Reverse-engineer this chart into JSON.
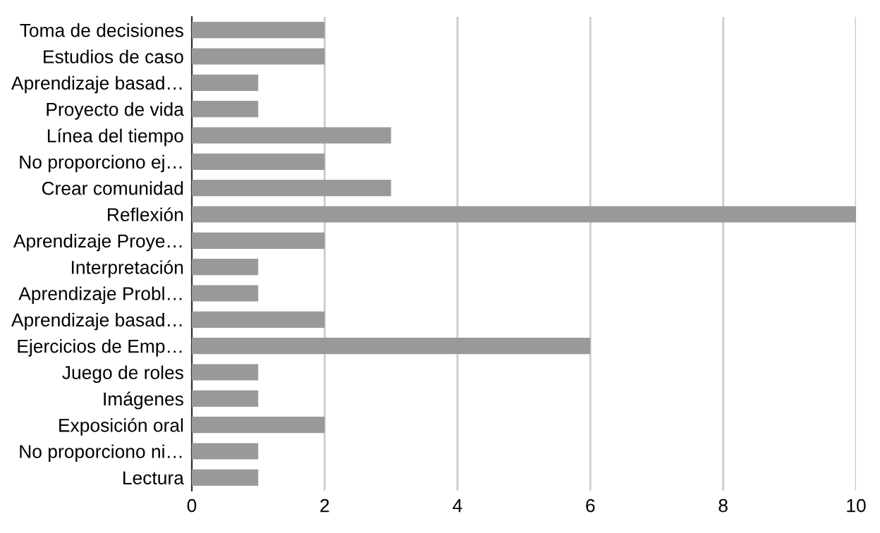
{
  "chart_data": {
    "type": "bar",
    "orientation": "horizontal",
    "categories": [
      "Toma de decisiones",
      "Estudios de caso",
      "Aprendizaje basad…",
      "Proyecto de vida",
      "Línea del tiempo",
      "No proporciono ej…",
      "Crear comunidad",
      "Reflexión",
      "Aprendizaje Proye…",
      "Interpretación",
      "Aprendizaje Probl…",
      "Aprendizaje basad…",
      "Ejercicios de Emp…",
      "Juego de roles",
      "Imágenes",
      "Exposición oral",
      "No proporciono ni…",
      "Lectura"
    ],
    "values": [
      2,
      2,
      1,
      1,
      3,
      2,
      3,
      10,
      2,
      1,
      1,
      2,
      6,
      1,
      1,
      2,
      1,
      1
    ],
    "color": "#999999",
    "xlim": [
      0,
      10
    ],
    "xticks": [
      0,
      2,
      4,
      6,
      8,
      10
    ],
    "grid": "x",
    "legend": false
  }
}
